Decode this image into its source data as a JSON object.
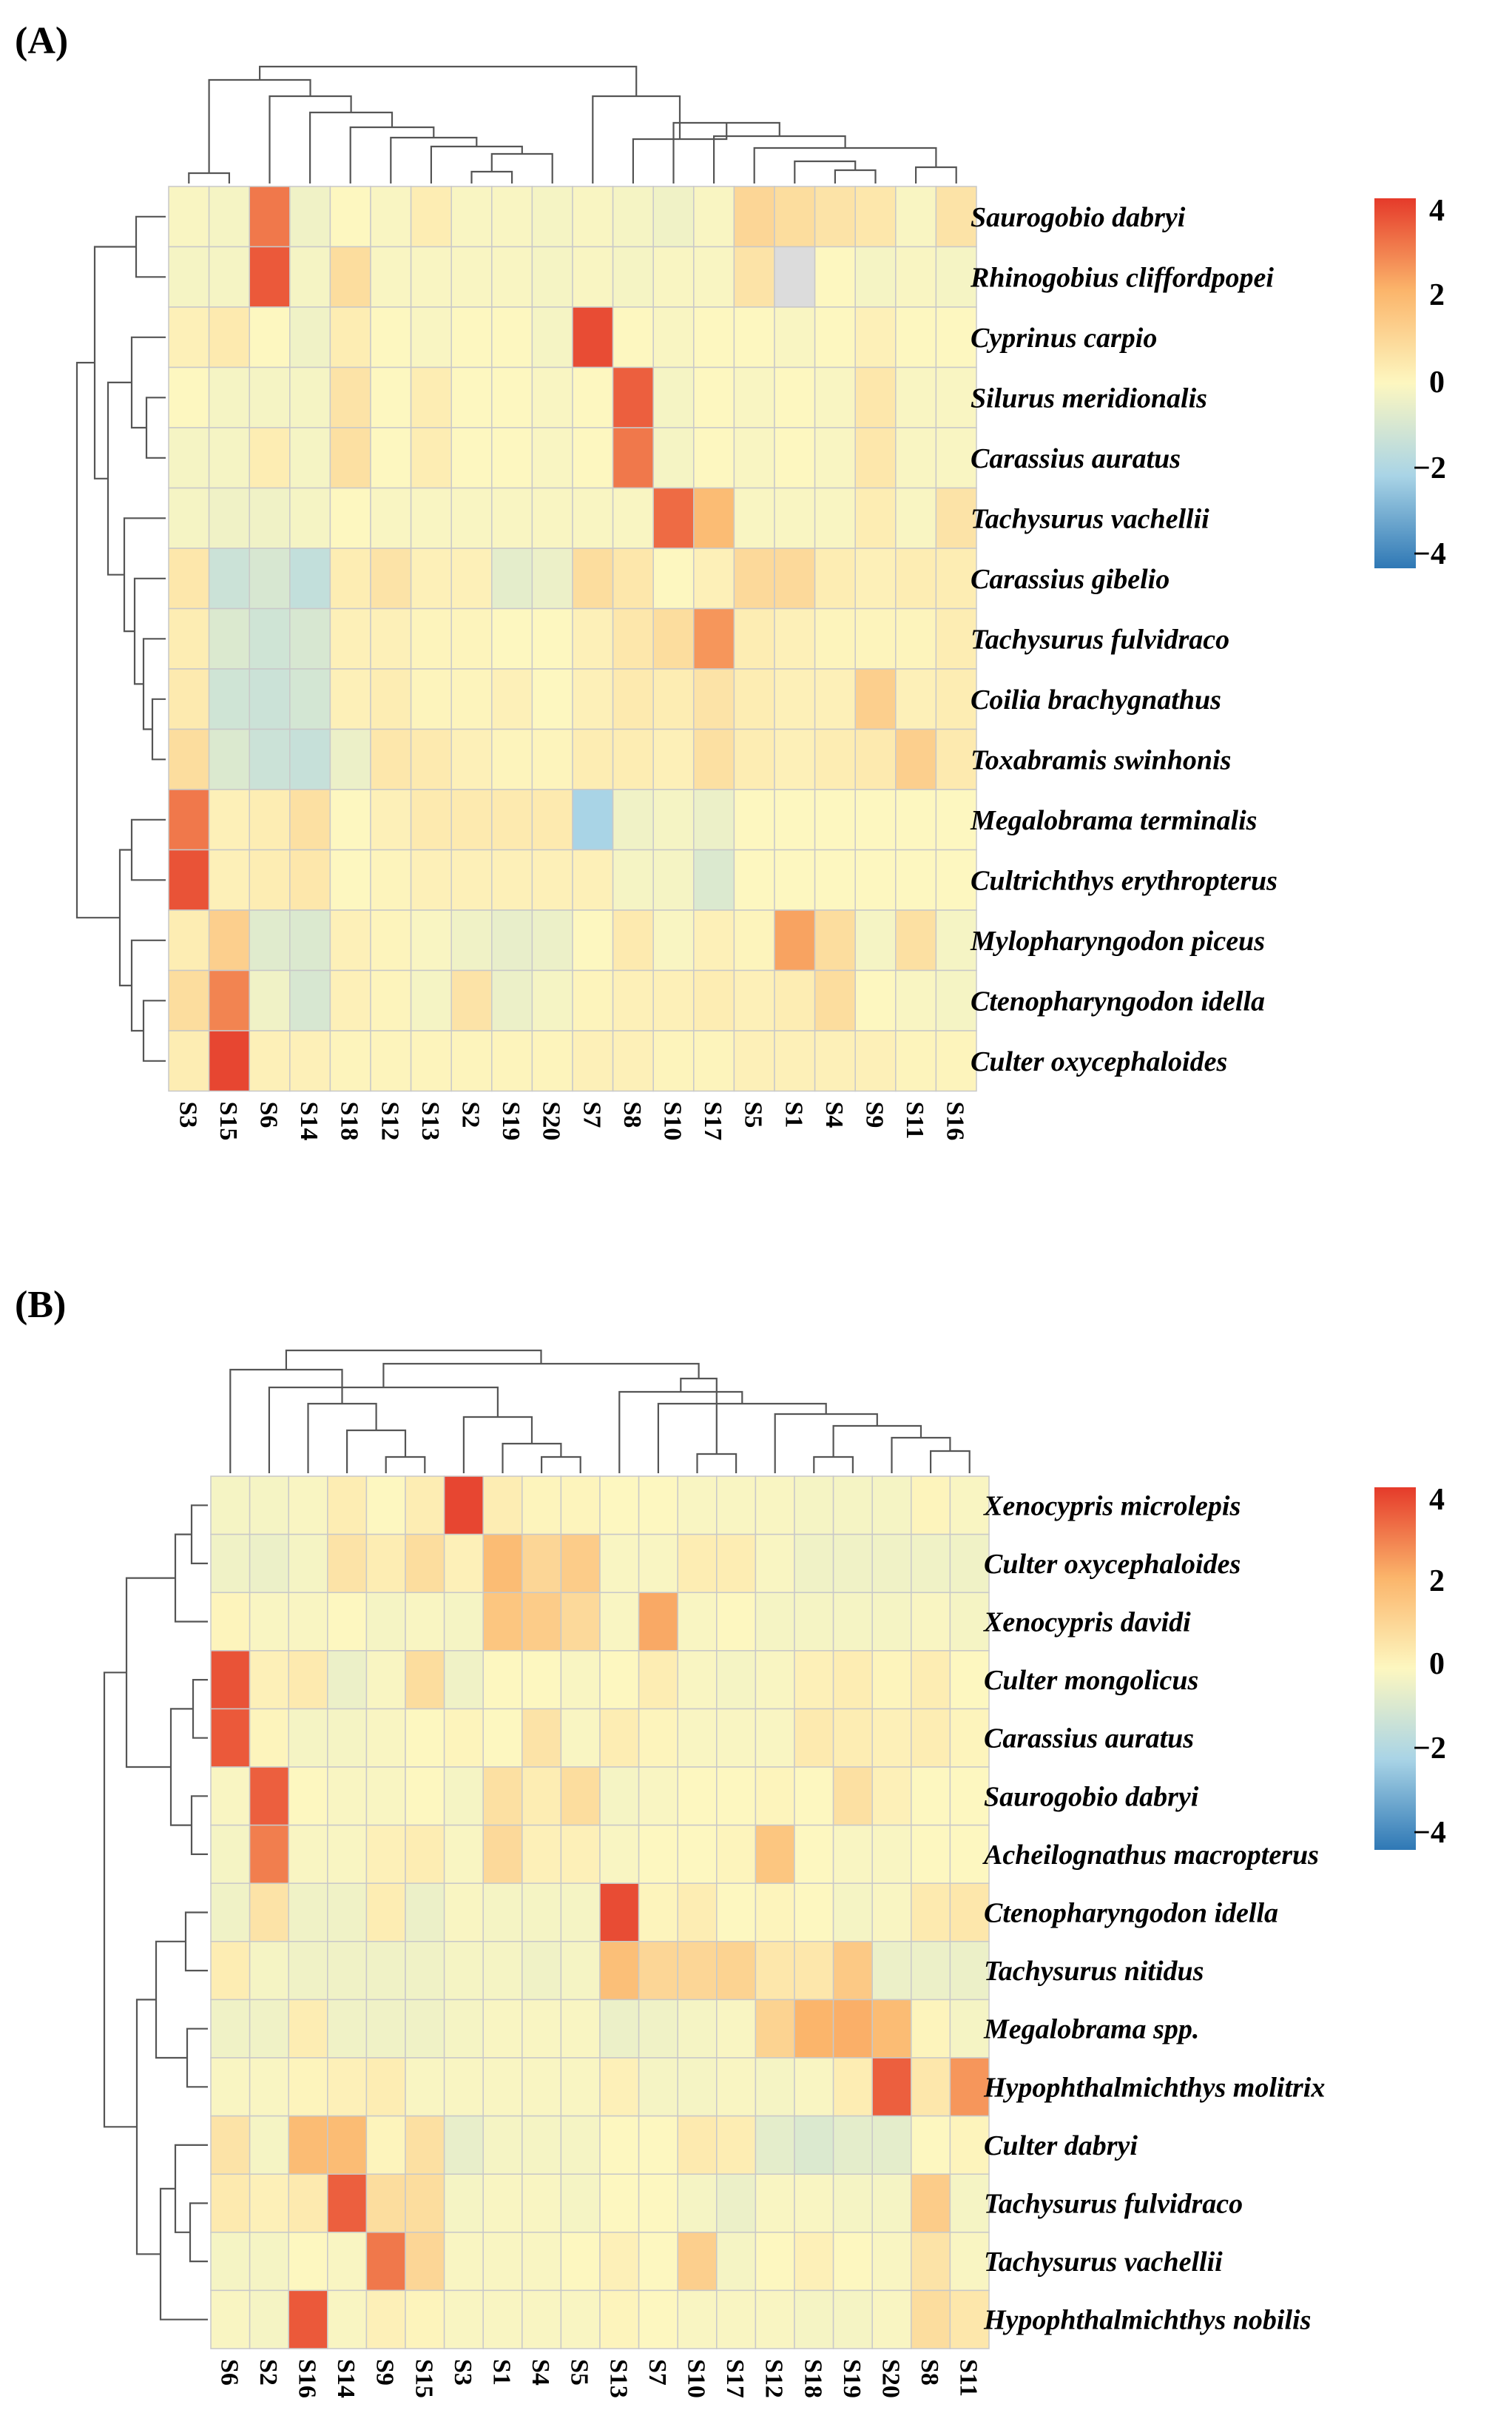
{
  "heatmaps": [
    {
      "panel_label": "(A)",
      "rows": [
        "Saurogobio dabryi",
        "Rhinogobius cliffordpopei",
        "Cyprinus carpio",
        "Silurus meridionalis",
        "Carassius auratus",
        "Tachysurus vachellii",
        "Carassius gibelio",
        "Tachysurus fulvidraco",
        "Coilia brachygnathus",
        "Toxabramis swinhonis",
        "Megalobrama terminalis",
        "Cultrichthys erythropterus",
        "Mylopharyngodon piceus",
        "Ctenopharyngodon idella",
        "Culter oxycephaloides"
      ],
      "columns": [
        "S3",
        "S15",
        "S6",
        "S14",
        "S18",
        "S12",
        "S13",
        "S2",
        "S19",
        "S20",
        "S7",
        "S8",
        "S10",
        "S17",
        "S5",
        "S1",
        "S4",
        "S9",
        "S11",
        "S16"
      ],
      "legend": {
        "ticks": [
          "4",
          "2",
          "0",
          "−2",
          "−4"
        ],
        "range": [
          -4,
          4
        ]
      }
    },
    {
      "panel_label": "(B)",
      "rows": [
        "Xenocypris microlepis",
        "Culter oxycephaloides",
        "Xenocypris davidi",
        "Culter mongolicus",
        "Carassius auratus",
        "Saurogobio dabryi",
        "Acheilognathus macropterus",
        "Ctenopharyngodon idella",
        "Tachysurus nitidus",
        "Megalobrama spp.",
        "Hypophthalmichthys molitrix",
        "Culter dabryi",
        "Tachysurus fulvidraco",
        "Tachysurus vachellii",
        "Hypophthalmichthys nobilis"
      ],
      "columns": [
        "S6",
        "S2",
        "S16",
        "S14",
        "S9",
        "S15",
        "S3",
        "S1",
        "S4",
        "S5",
        "S13",
        "S7",
        "S10",
        "S17",
        "S12",
        "S18",
        "S19",
        "S20",
        "S8",
        "S11"
      ],
      "legend": {
        "ticks": [
          "4",
          "2",
          "0",
          "−2",
          "−4"
        ],
        "range": [
          -4,
          4
        ]
      }
    }
  ],
  "chart_data": [
    {
      "type": "heatmap",
      "title": "(A)",
      "colorbar_range": [
        -4,
        4
      ],
      "x": [
        "S3",
        "S15",
        "S6",
        "S14",
        "S18",
        "S12",
        "S13",
        "S2",
        "S19",
        "S20",
        "S7",
        "S8",
        "S10",
        "S17",
        "S5",
        "S1",
        "S4",
        "S9",
        "S11",
        "S16"
      ],
      "y": [
        "Saurogobio dabryi",
        "Rhinogobius cliffordpopei",
        "Cyprinus carpio",
        "Silurus meridionalis",
        "Carassius auratus",
        "Tachysurus vachellii",
        "Carassius gibelio",
        "Tachysurus fulvidraco",
        "Coilia brachygnathus",
        "Toxabramis swinhonis",
        "Megalobrama terminalis",
        "Cultrichthys erythropterus",
        "Mylopharyngodon piceus",
        "Ctenopharyngodon idella",
        "Culter oxycephaloides"
      ],
      "values": [
        [
          -0.1,
          -0.2,
          3.0,
          -0.3,
          0.0,
          -0.1,
          0.3,
          -0.1,
          -0.1,
          -0.2,
          -0.1,
          -0.2,
          -0.3,
          -0.1,
          1.0,
          0.8,
          0.6,
          0.5,
          -0.1,
          0.6
        ],
        [
          -0.2,
          -0.2,
          3.5,
          -0.2,
          0.8,
          -0.1,
          -0.1,
          -0.1,
          -0.1,
          -0.2,
          -0.1,
          -0.2,
          -0.1,
          -0.1,
          0.6,
          null,
          0.0,
          -0.2,
          -0.1,
          -0.2
        ],
        [
          0.2,
          0.4,
          0.0,
          -0.3,
          0.3,
          0.0,
          -0.1,
          0.0,
          0.0,
          -0.2,
          3.7,
          0.0,
          -0.1,
          0.0,
          0.0,
          -0.1,
          0.0,
          0.2,
          0.0,
          0.0
        ],
        [
          0.0,
          -0.2,
          -0.2,
          -0.2,
          0.6,
          0.0,
          0.3,
          0.0,
          0.0,
          -0.1,
          0.0,
          3.4,
          -0.2,
          0.0,
          -0.1,
          0.0,
          -0.1,
          0.5,
          -0.1,
          -0.1
        ],
        [
          -0.2,
          -0.2,
          0.3,
          -0.2,
          0.7,
          0.0,
          0.3,
          0.0,
          0.0,
          -0.1,
          0.0,
          3.0,
          -0.2,
          0.0,
          -0.1,
          0.0,
          -0.1,
          0.5,
          -0.1,
          -0.1
        ],
        [
          -0.2,
          -0.3,
          -0.3,
          -0.2,
          0.0,
          -0.1,
          -0.1,
          -0.1,
          -0.1,
          -0.1,
          -0.1,
          -0.1,
          3.2,
          1.8,
          -0.1,
          -0.1,
          -0.1,
          0.3,
          -0.1,
          0.6
        ],
        [
          0.5,
          -1.2,
          -0.9,
          -1.4,
          0.3,
          0.6,
          0.2,
          0.2,
          -0.6,
          -0.4,
          0.8,
          0.5,
          0.0,
          0.2,
          0.9,
          0.9,
          0.3,
          0.2,
          0.3,
          0.3
        ],
        [
          0.3,
          -0.8,
          -1.1,
          -0.9,
          0.2,
          0.2,
          0.1,
          0.1,
          0.0,
          0.0,
          0.2,
          0.5,
          0.8,
          2.5,
          0.3,
          0.2,
          0.1,
          0.1,
          0.1,
          0.3
        ],
        [
          0.4,
          -1.1,
          -1.2,
          -1.0,
          0.2,
          0.3,
          0.1,
          0.1,
          0.2,
          0.0,
          0.2,
          0.4,
          0.3,
          0.6,
          0.3,
          0.2,
          0.2,
          1.2,
          0.2,
          0.3
        ],
        [
          0.8,
          -0.8,
          -1.2,
          -1.3,
          -0.4,
          0.5,
          0.4,
          0.2,
          0.1,
          0.1,
          0.3,
          0.3,
          0.2,
          0.7,
          0.3,
          0.2,
          0.3,
          0.4,
          1.2,
          0.4
        ],
        [
          3.0,
          0.2,
          0.3,
          0.7,
          0.0,
          0.2,
          0.4,
          0.4,
          0.4,
          0.4,
          -2.0,
          -0.3,
          -0.2,
          -0.4,
          0.0,
          0.0,
          0.0,
          0.0,
          0.0,
          0.0
        ],
        [
          3.6,
          0.2,
          0.3,
          0.5,
          0.0,
          0.1,
          0.2,
          0.2,
          0.2,
          0.2,
          0.2,
          -0.2,
          -0.2,
          -0.8,
          0.0,
          0.0,
          0.0,
          0.0,
          0.0,
          0.0
        ],
        [
          0.3,
          1.2,
          -0.7,
          -0.8,
          0.2,
          0.1,
          -0.1,
          -0.3,
          -0.5,
          -0.4,
          0.0,
          0.4,
          -0.1,
          0.2,
          0.1,
          2.3,
          0.8,
          -0.2,
          0.7,
          -0.2
        ],
        [
          0.8,
          2.8,
          -0.3,
          -0.9,
          0.2,
          0.1,
          -0.2,
          0.6,
          -0.4,
          -0.2,
          0.1,
          0.2,
          0.2,
          0.3,
          0.2,
          0.3,
          0.8,
          0.0,
          -0.1,
          -0.2
        ],
        [
          0.3,
          3.8,
          0.2,
          0.2,
          0.1,
          0.1,
          0.1,
          0.1,
          0.1,
          0.1,
          0.2,
          0.2,
          0.1,
          0.1,
          0.2,
          0.2,
          0.2,
          0.2,
          0.1,
          0.1
        ]
      ]
    },
    {
      "type": "heatmap",
      "title": "(B)",
      "colorbar_range": [
        -4,
        4
      ],
      "x": [
        "S6",
        "S2",
        "S16",
        "S14",
        "S9",
        "S15",
        "S3",
        "S1",
        "S4",
        "S5",
        "S13",
        "S7",
        "S10",
        "S17",
        "S12",
        "S18",
        "S19",
        "S20",
        "S8",
        "S11"
      ],
      "y": [
        "Xenocypris microlepis",
        "Culter oxycephaloides",
        "Xenocypris davidi",
        "Culter mongolicus",
        "Carassius auratus",
        "Saurogobio dabryi",
        "Acheilognathus macropterus",
        "Ctenopharyngodon idella",
        "Tachysurus nitidus",
        "Megalobrama spp.",
        "Hypophthalmichthys molitrix",
        "Culter dabryi",
        "Tachysurus fulvidraco",
        "Tachysurus vachellii",
        "Hypophthalmichthys nobilis"
      ],
      "values": [
        [
          -0.2,
          -0.2,
          -0.1,
          0.3,
          0.0,
          0.3,
          3.8,
          0.3,
          0.1,
          0.1,
          0.0,
          0.0,
          -0.1,
          -0.1,
          -0.1,
          -0.2,
          -0.2,
          -0.2,
          0.1,
          -0.1
        ],
        [
          -0.3,
          -0.4,
          -0.2,
          0.6,
          0.3,
          0.8,
          0.2,
          1.8,
          1.0,
          1.3,
          -0.1,
          -0.1,
          0.3,
          0.3,
          -0.1,
          -0.3,
          -0.3,
          -0.3,
          -0.3,
          -0.3
        ],
        [
          0.1,
          -0.1,
          -0.1,
          0.0,
          -0.2,
          -0.1,
          -0.2,
          1.5,
          1.3,
          0.9,
          -0.1,
          2.2,
          -0.1,
          0.0,
          -0.2,
          -0.2,
          -0.2,
          -0.2,
          -0.1,
          -0.2
        ],
        [
          3.6,
          0.2,
          0.4,
          -0.4,
          -0.1,
          0.8,
          -0.3,
          0.0,
          0.0,
          -0.1,
          0.0,
          0.3,
          -0.1,
          -0.2,
          -0.1,
          0.2,
          0.3,
          0.1,
          0.3,
          0.0
        ],
        [
          3.5,
          0.1,
          -0.2,
          -0.2,
          -0.1,
          0.0,
          0.1,
          0.0,
          0.6,
          -0.1,
          0.3,
          0.1,
          -0.1,
          -0.1,
          -0.1,
          0.4,
          0.3,
          0.2,
          0.3,
          0.1
        ],
        [
          -0.1,
          3.4,
          0.0,
          -0.1,
          -0.1,
          0.0,
          -0.2,
          0.7,
          0.3,
          0.8,
          -0.2,
          -0.1,
          0.0,
          0.0,
          0.1,
          0.0,
          0.7,
          0.2,
          0.0,
          0.0
        ],
        [
          -0.2,
          2.9,
          -0.1,
          -0.1,
          0.2,
          0.3,
          -0.1,
          0.9,
          0.2,
          0.2,
          -0.1,
          0.0,
          0.0,
          0.1,
          1.5,
          0.0,
          -0.1,
          -0.1,
          0.0,
          0.0
        ],
        [
          -0.3,
          0.6,
          -0.3,
          -0.3,
          0.3,
          -0.4,
          -0.1,
          -0.2,
          -0.2,
          -0.2,
          3.7,
          0.1,
          0.3,
          0.0,
          0.1,
          0.0,
          -0.2,
          -0.1,
          0.4,
          0.5
        ],
        [
          0.3,
          -0.2,
          -0.3,
          -0.3,
          -0.3,
          -0.3,
          -0.2,
          -0.2,
          -0.3,
          -0.2,
          1.7,
          1.0,
          1.0,
          1.1,
          0.5,
          0.5,
          1.4,
          -0.4,
          -0.4,
          -0.4
        ],
        [
          -0.3,
          -0.3,
          0.3,
          -0.3,
          -0.3,
          -0.3,
          -0.2,
          -0.1,
          -0.1,
          -0.1,
          -0.4,
          -0.3,
          -0.2,
          -0.1,
          1.1,
          2.0,
          2.1,
          1.8,
          0.1,
          -0.2
        ],
        [
          -0.1,
          -0.1,
          0.1,
          0.2,
          0.3,
          -0.1,
          -0.1,
          -0.1,
          -0.1,
          -0.1,
          0.2,
          -0.2,
          -0.2,
          -0.1,
          -0.2,
          -0.1,
          0.3,
          3.4,
          0.5,
          2.5
        ],
        [
          0.6,
          -0.2,
          1.8,
          1.8,
          0.1,
          0.7,
          -0.5,
          -0.2,
          -0.2,
          -0.2,
          0.0,
          0.0,
          0.4,
          0.3,
          -0.6,
          -0.8,
          -0.6,
          -0.6,
          0.0,
          0.1
        ],
        [
          0.4,
          0.2,
          0.4,
          3.4,
          0.8,
          0.8,
          -0.2,
          -0.1,
          -0.1,
          -0.2,
          0.0,
          0.0,
          -0.2,
          -0.4,
          -0.1,
          -0.1,
          -0.2,
          -0.2,
          1.3,
          -0.2
        ],
        [
          -0.2,
          -0.2,
          0.0,
          -0.1,
          3.0,
          1.0,
          -0.1,
          -0.1,
          -0.1,
          0.0,
          0.2,
          0.0,
          1.2,
          -0.2,
          0.0,
          0.2,
          0.0,
          -0.1,
          0.6,
          -0.1
        ],
        [
          -0.1,
          -0.2,
          3.5,
          -0.1,
          0.2,
          0.1,
          -0.1,
          -0.1,
          -0.1,
          -0.1,
          0.1,
          0.0,
          -0.1,
          -0.1,
          -0.1,
          -0.2,
          -0.2,
          -0.1,
          0.8,
          0.5
        ]
      ]
    }
  ]
}
